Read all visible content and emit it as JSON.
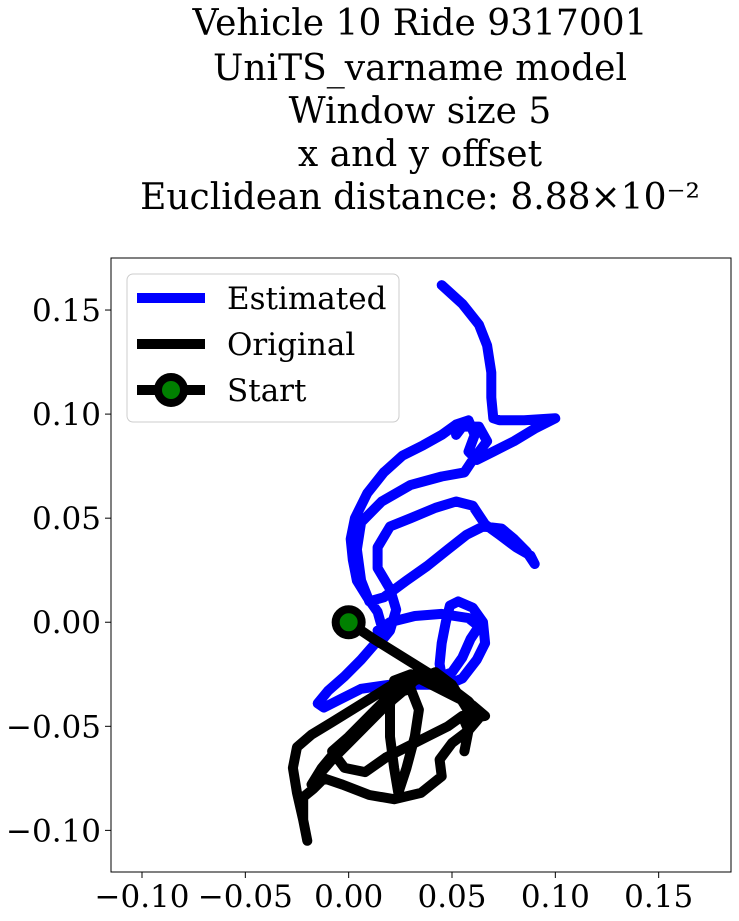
{
  "chart_data": {
    "type": "line",
    "title_lines": [
      "Vehicle 10 Ride 9317001",
      "UniTS_varname model",
      "Window size 5",
      "x and y offset",
      "Euclidean distance: 8.88×10⁻²"
    ],
    "xlim": [
      -0.115,
      0.185
    ],
    "ylim": [
      -0.12,
      0.175
    ],
    "xticks": [
      -0.1,
      -0.05,
      0.0,
      0.05,
      0.1,
      0.15
    ],
    "xtick_labels": [
      "−0.10",
      "−0.05",
      "0.00",
      "0.05",
      "0.10",
      "0.15"
    ],
    "yticks": [
      0.15,
      0.1,
      0.05,
      0.0,
      -0.05,
      -0.1
    ],
    "ytick_labels": [
      "0.15",
      "0.10",
      "0.05",
      "0.00",
      "−0.05",
      "−0.10"
    ],
    "grid": false,
    "legend_position": "top-left",
    "series": [
      {
        "name": "Estimated",
        "color": "#0000ff",
        "points": [
          [
            0.045,
            0.162
          ],
          [
            0.055,
            0.153
          ],
          [
            0.063,
            0.143
          ],
          [
            0.067,
            0.133
          ],
          [
            0.069,
            0.12
          ],
          [
            0.069,
            0.108
          ],
          [
            0.07,
            0.098
          ],
          [
            0.073,
            0.097
          ],
          [
            0.085,
            0.097
          ],
          [
            0.1,
            0.098
          ],
          [
            0.09,
            0.093
          ],
          [
            0.08,
            0.087
          ],
          [
            0.07,
            0.082
          ],
          [
            0.062,
            0.078
          ],
          [
            0.058,
            0.082
          ],
          [
            0.061,
            0.09
          ],
          [
            0.058,
            0.097
          ],
          [
            0.052,
            0.095
          ],
          [
            0.045,
            0.09
          ],
          [
            0.036,
            0.085
          ],
          [
            0.026,
            0.08
          ],
          [
            0.017,
            0.072
          ],
          [
            0.009,
            0.062
          ],
          [
            0.003,
            0.05
          ],
          [
            0.001,
            0.04
          ],
          [
            0.002,
            0.03
          ],
          [
            0.004,
            0.02
          ],
          [
            0.009,
            0.012
          ],
          [
            0.014,
            0.005
          ],
          [
            0.016,
            -0.002
          ],
          [
            0.013,
            -0.01
          ],
          [
            0.006,
            -0.018
          ],
          [
            -0.002,
            -0.026
          ],
          [
            -0.01,
            -0.033
          ],
          [
            -0.015,
            -0.039
          ],
          [
            -0.012,
            -0.041
          ],
          [
            -0.004,
            -0.037
          ],
          [
            0.006,
            -0.032
          ],
          [
            0.02,
            -0.03
          ],
          [
            0.035,
            -0.03
          ],
          [
            0.048,
            -0.03
          ],
          [
            0.055,
            -0.027
          ],
          [
            0.062,
            -0.018
          ],
          [
            0.066,
            -0.01
          ],
          [
            0.065,
            0.0
          ],
          [
            0.06,
            0.007
          ],
          [
            0.053,
            0.01
          ],
          [
            0.049,
            0.008
          ],
          [
            0.047,
            0.0
          ],
          [
            0.045,
            -0.01
          ],
          [
            0.044,
            -0.02
          ],
          [
            0.045,
            -0.026
          ],
          [
            0.05,
            -0.024
          ],
          [
            0.055,
            -0.017
          ],
          [
            0.059,
            -0.008
          ],
          [
            0.063,
            -0.002
          ],
          [
            0.058,
            0.002
          ],
          [
            0.045,
            0.004
          ],
          [
            0.032,
            0.003
          ],
          [
            0.02,
            0.0
          ],
          [
            0.014,
            -0.004
          ],
          [
            0.015,
            -0.01
          ],
          [
            0.02,
            -0.004
          ],
          [
            0.023,
            0.006
          ],
          [
            0.02,
            0.016
          ],
          [
            0.014,
            0.026
          ],
          [
            0.014,
            0.036
          ],
          [
            0.02,
            0.046
          ],
          [
            0.03,
            0.05
          ],
          [
            0.042,
            0.055
          ],
          [
            0.052,
            0.058
          ],
          [
            0.06,
            0.056
          ],
          [
            0.066,
            0.047
          ],
          [
            0.073,
            0.042
          ],
          [
            0.081,
            0.036
          ],
          [
            0.088,
            0.032
          ],
          [
            0.09,
            0.028
          ],
          [
            0.086,
            0.034
          ],
          [
            0.08,
            0.04
          ],
          [
            0.074,
            0.045
          ],
          [
            0.065,
            0.046
          ],
          [
            0.057,
            0.042
          ],
          [
            0.048,
            0.035
          ],
          [
            0.038,
            0.027
          ],
          [
            0.028,
            0.02
          ],
          [
            0.017,
            0.012
          ],
          [
            0.01,
            0.01
          ],
          [
            0.006,
            0.02
          ],
          [
            0.004,
            0.035
          ],
          [
            0.006,
            0.048
          ],
          [
            0.016,
            0.058
          ],
          [
            0.03,
            0.066
          ],
          [
            0.045,
            0.07
          ],
          [
            0.056,
            0.072
          ],
          [
            0.06,
            0.078
          ],
          [
            0.067,
            0.087
          ],
          [
            0.063,
            0.094
          ],
          [
            0.055,
            0.094
          ],
          [
            0.052,
            0.09
          ]
        ]
      },
      {
        "name": "Original",
        "color": "#000000",
        "points": [
          [
            0.0,
            0.0
          ],
          [
            0.012,
            -0.008
          ],
          [
            0.025,
            -0.016
          ],
          [
            0.038,
            -0.024
          ],
          [
            0.05,
            -0.032
          ],
          [
            0.058,
            -0.038
          ],
          [
            0.064,
            -0.045
          ],
          [
            0.058,
            -0.052
          ],
          [
            0.05,
            -0.058
          ],
          [
            0.044,
            -0.066
          ],
          [
            0.045,
            -0.074
          ],
          [
            0.04,
            -0.078
          ],
          [
            0.035,
            -0.082
          ],
          [
            0.022,
            -0.085
          ],
          [
            0.01,
            -0.083
          ],
          [
            -0.003,
            -0.078
          ],
          [
            -0.012,
            -0.075
          ],
          [
            -0.017,
            -0.08
          ],
          [
            -0.022,
            -0.084
          ],
          [
            -0.022,
            -0.095
          ],
          [
            -0.02,
            -0.105
          ],
          [
            -0.022,
            -0.095
          ],
          [
            -0.025,
            -0.082
          ],
          [
            -0.027,
            -0.07
          ],
          [
            -0.025,
            -0.06
          ],
          [
            -0.018,
            -0.054
          ],
          [
            -0.008,
            -0.048
          ],
          [
            0.005,
            -0.04
          ],
          [
            0.018,
            -0.032
          ],
          [
            0.028,
            -0.026
          ],
          [
            0.035,
            -0.024
          ],
          [
            0.03,
            -0.03
          ],
          [
            0.018,
            -0.04
          ],
          [
            0.008,
            -0.05
          ],
          [
            0.0,
            -0.058
          ],
          [
            -0.008,
            -0.066
          ],
          [
            -0.015,
            -0.074
          ],
          [
            -0.018,
            -0.078
          ],
          [
            -0.013,
            -0.07
          ],
          [
            -0.003,
            -0.058
          ],
          [
            0.008,
            -0.047
          ],
          [
            0.02,
            -0.037
          ],
          [
            0.032,
            -0.028
          ],
          [
            0.042,
            -0.024
          ],
          [
            0.05,
            -0.03
          ],
          [
            0.055,
            -0.038
          ],
          [
            0.06,
            -0.046
          ],
          [
            0.066,
            -0.045
          ],
          [
            0.06,
            -0.04
          ],
          [
            0.05,
            -0.035
          ],
          [
            0.04,
            -0.03
          ],
          [
            0.03,
            -0.025
          ],
          [
            0.022,
            -0.028
          ],
          [
            0.02,
            -0.04
          ],
          [
            0.02,
            -0.055
          ],
          [
            0.022,
            -0.07
          ],
          [
            0.024,
            -0.082
          ],
          [
            0.028,
            -0.07
          ],
          [
            0.032,
            -0.055
          ],
          [
            0.034,
            -0.042
          ],
          [
            0.03,
            -0.032
          ],
          [
            0.02,
            -0.035
          ],
          [
            0.01,
            -0.045
          ],
          [
            0.0,
            -0.055
          ],
          [
            -0.008,
            -0.062
          ],
          [
            -0.002,
            -0.07
          ],
          [
            0.008,
            -0.072
          ],
          [
            0.018,
            -0.065
          ],
          [
            0.028,
            -0.06
          ],
          [
            0.038,
            -0.055
          ],
          [
            0.048,
            -0.05
          ],
          [
            0.055,
            -0.045
          ],
          [
            0.058,
            -0.052
          ],
          [
            0.056,
            -0.062
          ]
        ]
      }
    ],
    "start_point": [
      0.0,
      0.0
    ],
    "legend": [
      {
        "label": "Estimated",
        "style": "line",
        "color": "#0000ff"
      },
      {
        "label": "Original",
        "style": "line",
        "color": "#000000"
      },
      {
        "label": "Start",
        "style": "marker",
        "color": "#000000",
        "marker_face": "#008000"
      }
    ]
  }
}
